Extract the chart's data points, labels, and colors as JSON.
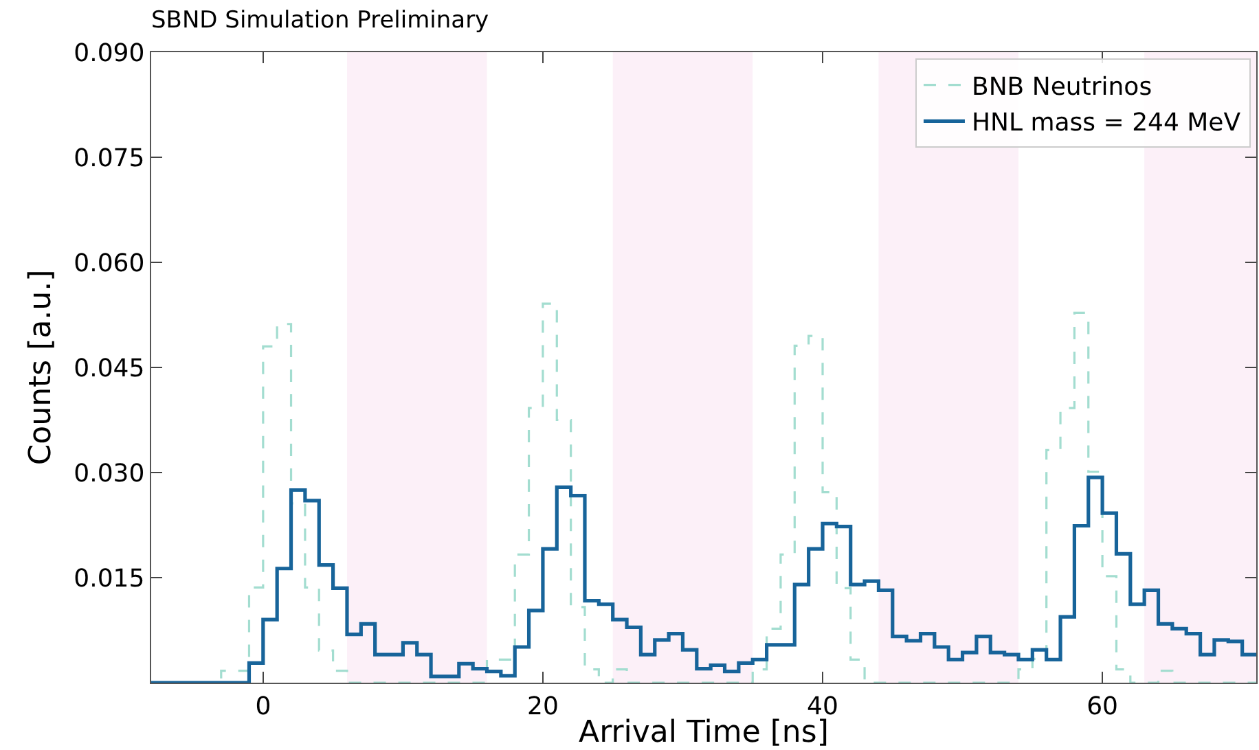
{
  "chart_data": {
    "type": "histogram",
    "title": "SBND Simulation Preliminary",
    "xlabel": "Arrival Time [ns]",
    "ylabel": "Counts [a.u.]",
    "bins": [
      -8,
      -7,
      -6,
      -5,
      -4,
      -3,
      -2,
      -1,
      0,
      1,
      2,
      3,
      4,
      5,
      6,
      7,
      8,
      9,
      10,
      11,
      12,
      13,
      14,
      15,
      16,
      17,
      18,
      19,
      20,
      21,
      22,
      23,
      24,
      25,
      26,
      27,
      28,
      29,
      30,
      31,
      32,
      33,
      34,
      35,
      36,
      37,
      38,
      39,
      40,
      41,
      42,
      43,
      44,
      45,
      46,
      47,
      48,
      49,
      50,
      51,
      52,
      53,
      54,
      55,
      56,
      57,
      58,
      59,
      60,
      61,
      62,
      63,
      64,
      65,
      66,
      67,
      68,
      69,
      70,
      71
    ],
    "series": [
      {
        "name": "BNB Neutrinos",
        "color": "#a3ddd0",
        "line_style": "dashed",
        "values": [
          0,
          0,
          0,
          0,
          0,
          0.0017,
          0.0017,
          0.0136,
          0.048,
          0.0512,
          0.0256,
          0.0136,
          0.0046,
          0.0017,
          0,
          0,
          0,
          0,
          0,
          0,
          0,
          0,
          0,
          0,
          0.0033,
          0.0033,
          0.0183,
          0.0392,
          0.0541,
          0.0375,
          0.0108,
          0.0019,
          0,
          0.0019,
          0,
          0,
          0,
          0,
          0,
          0,
          0,
          0,
          0,
          0.0019,
          0.0077,
          0.0183,
          0.0481,
          0.0495,
          0.0272,
          0.0135,
          0.0033,
          0,
          0,
          0,
          0,
          0,
          0,
          0,
          0,
          0,
          0,
          0,
          0.0019,
          0.0034,
          0.0332,
          0.0392,
          0.0528,
          0.0301,
          0.0152,
          0.0019,
          0,
          0,
          0.0017,
          0,
          0,
          0,
          0,
          0,
          0
        ]
      },
      {
        "name": "HNL mass = 244 MeV",
        "color": "#17649a",
        "line_style": "solid",
        "values": [
          0,
          0,
          0,
          0,
          0,
          0,
          0,
          0.0028,
          0.009,
          0.0163,
          0.0275,
          0.026,
          0.0168,
          0.0135,
          0.0069,
          0.0084,
          0.004,
          0.004,
          0.0057,
          0.004,
          0.0009,
          0.0009,
          0.0027,
          0.002,
          0.0016,
          0.001,
          0.0051,
          0.0103,
          0.0191,
          0.0279,
          0.0267,
          0.0117,
          0.0112,
          0.009,
          0.0079,
          0.004,
          0.0061,
          0.007,
          0.0047,
          0.002,
          0.0025,
          0.0016,
          0.0028,
          0.0033,
          0.0054,
          0.0054,
          0.014,
          0.0191,
          0.0227,
          0.0223,
          0.014,
          0.0145,
          0.0132,
          0.0066,
          0.006,
          0.007,
          0.0051,
          0.0033,
          0.0043,
          0.0066,
          0.0043,
          0.004,
          0.0033,
          0.0047,
          0.0033,
          0.0094,
          0.0224,
          0.0293,
          0.0242,
          0.0184,
          0.0112,
          0.0132,
          0.0084,
          0.0077,
          0.007,
          0.004,
          0.0061,
          0.0059,
          0.004
        ]
      }
    ],
    "xlim": [
      -8,
      71
    ],
    "xticks": [
      0,
      20,
      40,
      60
    ],
    "ylim": [
      0,
      0.09
    ],
    "yticks": [
      {
        "value": 0.015,
        "label": "0.015"
      },
      {
        "value": 0.03,
        "label": "0.030"
      },
      {
        "value": 0.045,
        "label": "0.045"
      },
      {
        "value": 0.06,
        "label": "0.060"
      },
      {
        "value": 0.075,
        "label": "0.075"
      },
      {
        "value": 0.09,
        "label": "0.090"
      }
    ],
    "bands": [
      {
        "axis": "x",
        "from": 6,
        "to": 16,
        "color": "#fcf0f8"
      },
      {
        "axis": "x",
        "from": 25,
        "to": 35,
        "color": "#fcf0f8"
      },
      {
        "axis": "x",
        "from": 44,
        "to": 54,
        "color": "#fcf0f8"
      },
      {
        "axis": "x",
        "from": 63,
        "to": 71,
        "color": "#fcf0f8"
      }
    ],
    "grid": false,
    "legend": "top right"
  }
}
